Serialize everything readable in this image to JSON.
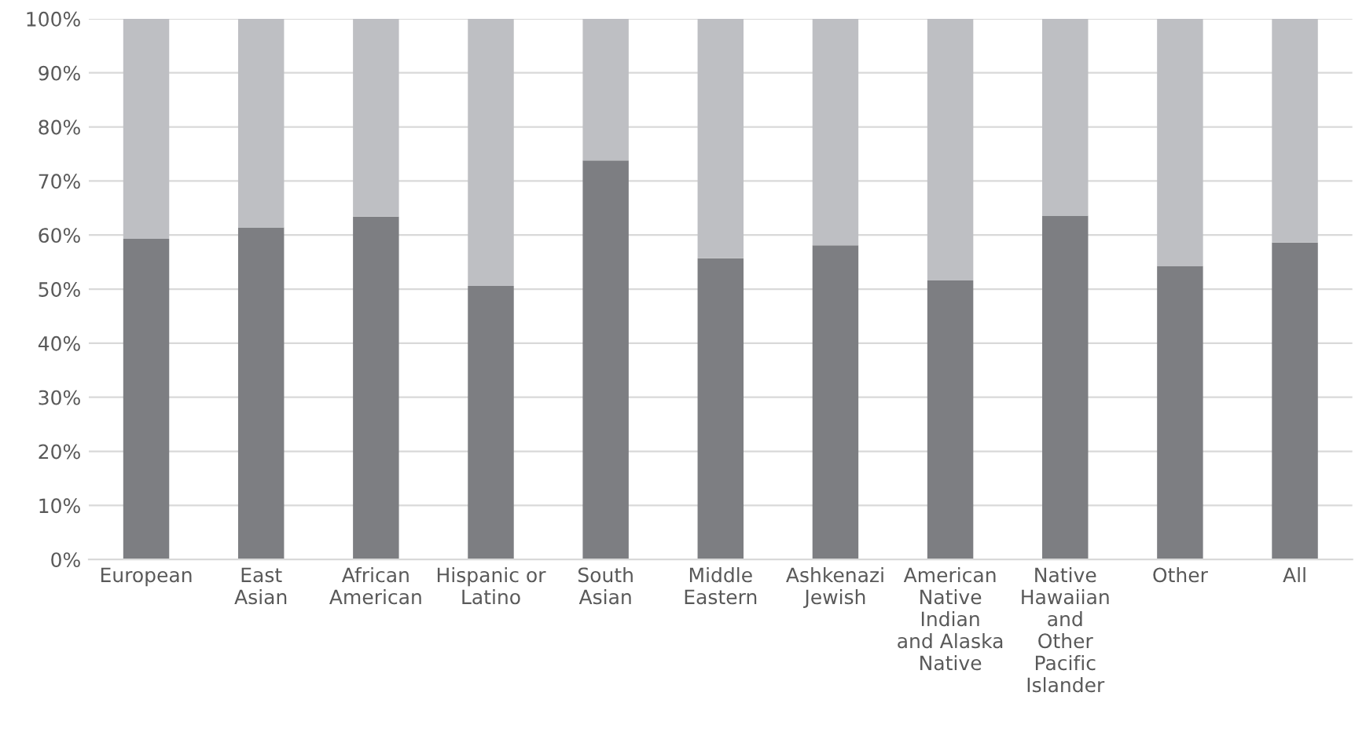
{
  "chart_data": {
    "type": "bar",
    "stacked": true,
    "categories": [
      "European",
      "East\nAsian",
      "African\nAmerican",
      "Hispanic or\nLatino",
      "South\nAsian",
      "Middle\nEastern",
      "Ashkenazi\nJewish",
      "American\nNative\nIndian\nand Alaska\nNative",
      "Native\nHawaiian\nand\nOther\nPacific\nIslander",
      "Other",
      "All"
    ],
    "series": [
      {
        "color": "#7d7e82",
        "values": [
          59.3,
          61.4,
          63.4,
          50.6,
          73.8,
          55.7,
          58.1,
          51.6,
          63.6,
          54.3,
          58.6
        ]
      },
      {
        "color": "#bebfc3",
        "values": [
          40.7,
          38.6,
          36.6,
          49.4,
          26.2,
          44.3,
          41.9,
          48.4,
          36.4,
          45.7,
          41.4
        ]
      }
    ],
    "ylim": [
      0,
      100
    ],
    "yticks": [
      {
        "value": 0,
        "label": "0%"
      },
      {
        "value": 10,
        "label": "10%"
      },
      {
        "value": 20,
        "label": "20%"
      },
      {
        "value": 30,
        "label": "30%"
      },
      {
        "value": 40,
        "label": "40%"
      },
      {
        "value": 50,
        "label": "50%"
      },
      {
        "value": 60,
        "label": "60%"
      },
      {
        "value": 70,
        "label": "70%"
      },
      {
        "value": 80,
        "label": "80%"
      },
      {
        "value": 90,
        "label": "90%"
      },
      {
        "value": 100,
        "label": "100%"
      }
    ],
    "grid": "y"
  }
}
